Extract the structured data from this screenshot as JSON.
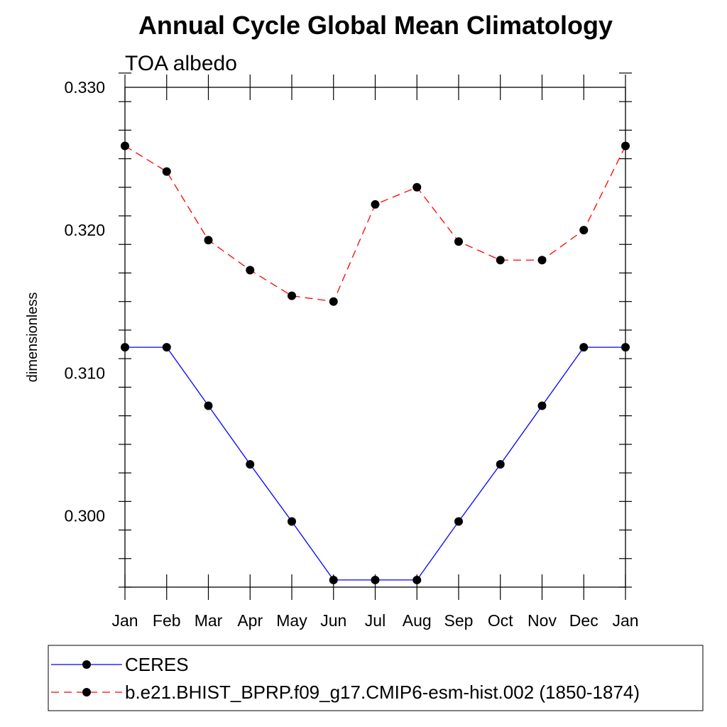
{
  "chart_data": {
    "type": "line",
    "title": "Annual Cycle Global Mean Climatology",
    "subtitle": "TOA albedo",
    "xlabel": "",
    "ylabel": "dimensionless",
    "categories": [
      "Jan",
      "Feb",
      "Mar",
      "Apr",
      "May",
      "Jun",
      "Jul",
      "Aug",
      "Sep",
      "Oct",
      "Nov",
      "Dec",
      "Jan"
    ],
    "ylim": [
      0.295,
      0.33
    ],
    "yticks": [
      0.3,
      0.31,
      0.32,
      0.33
    ],
    "ytick_labels": [
      "0.300",
      "0.310",
      "0.320",
      "0.330"
    ],
    "grid": false,
    "legend_position": "bottom",
    "series": [
      {
        "name": "CERES",
        "color": "#0000ff",
        "line_style": "solid",
        "marker": "filled-circle",
        "values": [
          0.3118,
          0.3118,
          0.3077,
          0.3036,
          0.2996,
          0.2955,
          0.2955,
          0.2955,
          0.2996,
          0.3036,
          0.3077,
          0.3118,
          0.3118
        ]
      },
      {
        "name": "b.e21.BHIST_BPRP.f09_g17.CMIP6-esm-hist.002 (1850-1874)",
        "color": "#ff0000",
        "line_style": "dashed",
        "marker": "filled-circle",
        "values": [
          0.3259,
          0.3241,
          0.3193,
          0.3172,
          0.3154,
          0.315,
          0.3218,
          0.323,
          0.3192,
          0.3179,
          0.3179,
          0.32,
          0.3259
        ]
      }
    ]
  }
}
